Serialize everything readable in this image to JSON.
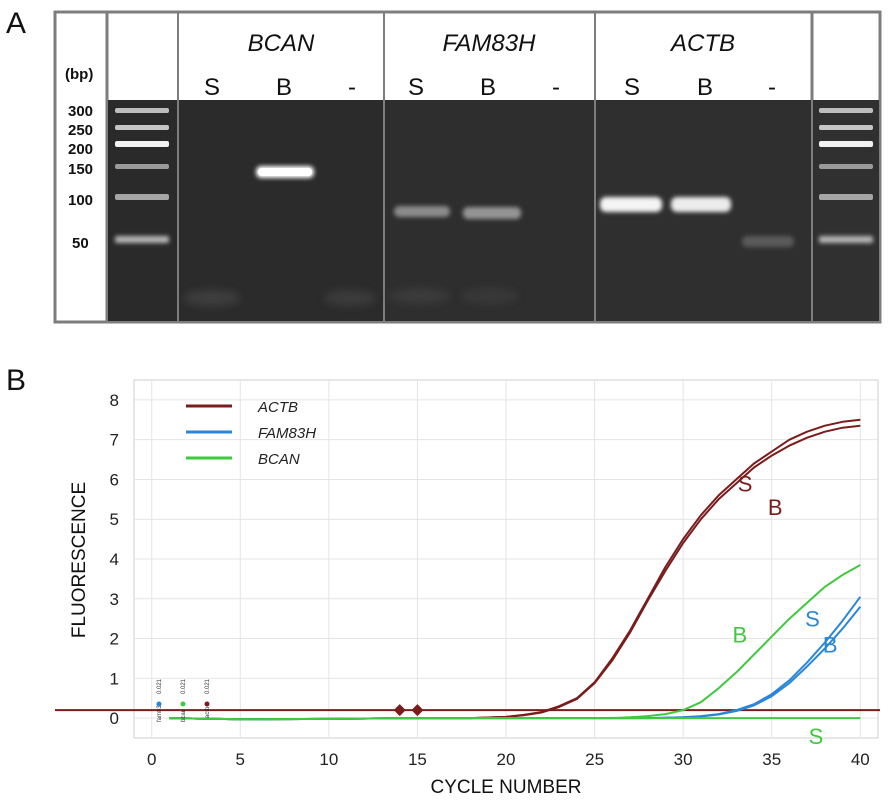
{
  "panel_a": {
    "letter": "A",
    "bp_unit": "(bp)",
    "genes": [
      "BCAN",
      "FAM83H",
      "ACTB"
    ],
    "lanes": [
      "S",
      "B",
      "-",
      "S",
      "B",
      "-",
      "S",
      "B",
      "-"
    ],
    "ladder": [
      300,
      250,
      200,
      150,
      100,
      50
    ],
    "ladder_labels": [
      "300",
      "250",
      "200",
      "150",
      "100",
      "50"
    ],
    "bands": [
      {
        "gene": "BCAN",
        "lane": "B",
        "size_bp": 150,
        "intensity": 1.0
      },
      {
        "gene": "FAM83H",
        "lane": "S",
        "size_bp": 87,
        "intensity": 0.45
      },
      {
        "gene": "FAM83H",
        "lane": "B",
        "size_bp": 85,
        "intensity": 0.5
      },
      {
        "gene": "ACTB",
        "lane": "S",
        "size_bp": 92,
        "intensity": 0.95
      },
      {
        "gene": "ACTB",
        "lane": "B",
        "size_bp": 92,
        "intensity": 0.9
      },
      {
        "gene": "ACTB",
        "lane": "-",
        "size_bp": 48,
        "intensity": 0.25
      }
    ]
  },
  "panel_b": {
    "letter": "B",
    "threshold_markers": [
      {
        "text": "fam83h",
        "value": "0.021",
        "color": "#2a87d8"
      },
      {
        "text": "bcan",
        "value": "0.021",
        "color": "#3ec93e"
      },
      {
        "text": "actb",
        "value": "0.021",
        "color": "#7a1c1c"
      }
    ]
  },
  "chart_data": {
    "type": "line",
    "title": "",
    "xlabel": "CYCLE NUMBER",
    "ylabel": "FLUORESCENCE",
    "xlim": [
      -1,
      41
    ],
    "ylim": [
      -0.5,
      8.5
    ],
    "xticks": [
      0,
      5,
      10,
      15,
      20,
      25,
      30,
      35,
      40
    ],
    "yticks": [
      0,
      1,
      2,
      3,
      4,
      5,
      6,
      7,
      8
    ],
    "grid": true,
    "legend_position": "top-left",
    "threshold": 0.2,
    "threshold_color": "#7a1c1c",
    "threshold_points": [
      [
        14,
        0.2
      ],
      [
        15,
        0.2
      ]
    ],
    "x": [
      1,
      5,
      10,
      15,
      18,
      20,
      21,
      22,
      23,
      24,
      25,
      26,
      27,
      28,
      29,
      30,
      31,
      32,
      33,
      34,
      35,
      36,
      37,
      38,
      39,
      40
    ],
    "legend": [
      {
        "name": "ACTB",
        "color": "#7a1c1c"
      },
      {
        "name": "FAM83H",
        "color": "#2a87d8"
      },
      {
        "name": "BCAN",
        "color": "#3ec93e"
      }
    ],
    "series": [
      {
        "gene": "ACTB",
        "sample": "S",
        "color": "#7a1c1c",
        "values": [
          0,
          -0.03,
          -0.02,
          0,
          0,
          0.03,
          0.08,
          0.15,
          0.3,
          0.5,
          0.9,
          1.5,
          2.2,
          3.0,
          3.8,
          4.5,
          5.1,
          5.6,
          6.0,
          6.4,
          6.7,
          7.0,
          7.2,
          7.35,
          7.45,
          7.5
        ]
      },
      {
        "gene": "ACTB",
        "sample": "B",
        "color": "#7a1c1c",
        "values": [
          0,
          -0.03,
          -0.02,
          0,
          0,
          0.03,
          0.07,
          0.14,
          0.28,
          0.48,
          0.88,
          1.45,
          2.15,
          2.95,
          3.7,
          4.4,
          5.0,
          5.5,
          5.9,
          6.3,
          6.6,
          6.85,
          7.05,
          7.2,
          7.3,
          7.35
        ]
      },
      {
        "gene": "FAM83H",
        "sample": "S",
        "color": "#2a87d8",
        "values": [
          0,
          -0.03,
          -0.02,
          0,
          0,
          0,
          0,
          0,
          0,
          0,
          0,
          0,
          0,
          0,
          0.01,
          0.02,
          0.05,
          0.1,
          0.2,
          0.35,
          0.6,
          0.95,
          1.4,
          1.9,
          2.45,
          3.05
        ]
      },
      {
        "gene": "FAM83H",
        "sample": "B",
        "color": "#2a87d8",
        "values": [
          0,
          -0.03,
          -0.02,
          0,
          0,
          0,
          0,
          0,
          0,
          0,
          0,
          0,
          0,
          0,
          0.01,
          0.02,
          0.04,
          0.09,
          0.18,
          0.32,
          0.55,
          0.88,
          1.3,
          1.75,
          2.25,
          2.8
        ]
      },
      {
        "gene": "BCAN",
        "sample": "B",
        "color": "#3ec93e",
        "values": [
          0,
          -0.03,
          -0.02,
          0,
          0,
          0,
          0,
          0,
          0,
          0,
          0,
          0,
          0.02,
          0.05,
          0.1,
          0.2,
          0.4,
          0.75,
          1.15,
          1.6,
          2.05,
          2.5,
          2.9,
          3.3,
          3.6,
          3.85
        ]
      },
      {
        "gene": "BCAN",
        "sample": "S",
        "color": "#3ec93e",
        "values": [
          0,
          -0.03,
          -0.02,
          0,
          0,
          0,
          0,
          0,
          0,
          0,
          0,
          0,
          0,
          0,
          0,
          0,
          0,
          0,
          0,
          0,
          0,
          0,
          0,
          0,
          0,
          0
        ]
      }
    ],
    "curve_labels": [
      {
        "text": "S",
        "x": 33.5,
        "y": 5.7,
        "color": "#7a1c1c"
      },
      {
        "text": "B",
        "x": 35.2,
        "y": 5.1,
        "color": "#7a1c1c"
      },
      {
        "text": "B",
        "x": 33.2,
        "y": 1.9,
        "color": "#3ec93e"
      },
      {
        "text": "S",
        "x": 37.3,
        "y": 2.3,
        "color": "#2a87d8"
      },
      {
        "text": "B",
        "x": 38.3,
        "y": 1.65,
        "color": "#2a87d8"
      },
      {
        "text": "S",
        "x": 37.5,
        "y": -0.65,
        "color": "#3ec93e"
      }
    ]
  }
}
